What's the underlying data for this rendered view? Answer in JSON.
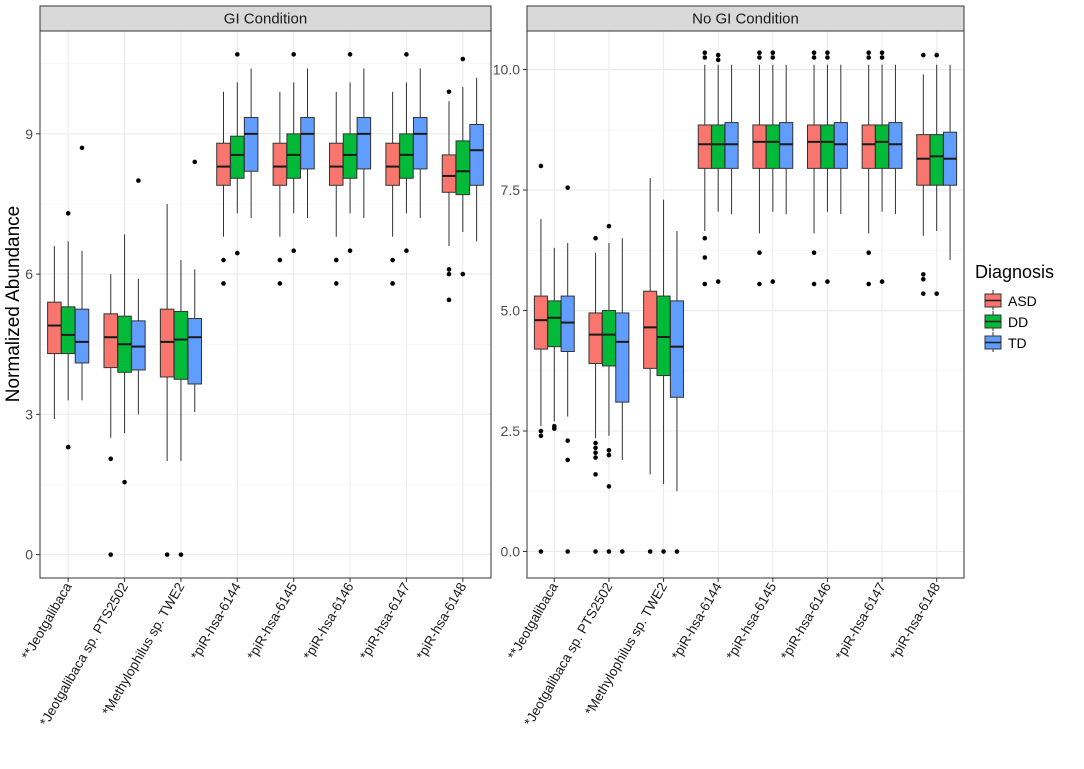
{
  "chart_data": {
    "type": "boxplot",
    "ylabel": "Normalized Abundance",
    "categories": [
      "**Jeotgalibaca",
      "*Jeotgalibaca sp. PTS2502",
      "*Methylophilus sp. TWE2",
      "*piR-hsa-6144",
      "*piR-hsa-6145",
      "*piR-hsa-6146",
      "*piR-hsa-6147",
      "*piR-hsa-6148"
    ],
    "legend": {
      "title": "Diagnosis",
      "groups": [
        {
          "name": "ASD",
          "color": "#F8766D"
        },
        {
          "name": "DD",
          "color": "#00BA38"
        },
        {
          "name": "TD",
          "color": "#619CFF"
        }
      ]
    },
    "panels": [
      {
        "title": "GI Condition",
        "ylim": [
          -0.5,
          11.2
        ],
        "yticks": [
          0,
          3,
          6,
          9
        ],
        "ytick_labels": [
          "0",
          "3",
          "6",
          "9"
        ],
        "groups": [
          [
            {
              "lw": 2.9,
              "q1": 4.3,
              "med": 4.9,
              "q3": 5.4,
              "uw": 6.6,
              "out": []
            },
            {
              "lw": 3.3,
              "q1": 4.3,
              "med": 4.7,
              "q3": 5.3,
              "uw": 6.7,
              "out": [
                7.3,
                2.3
              ]
            },
            {
              "lw": 3.3,
              "q1": 4.1,
              "med": 4.55,
              "q3": 5.25,
              "uw": 6.5,
              "out": [
                8.7
              ]
            }
          ],
          [
            {
              "lw": 2.5,
              "q1": 4.0,
              "med": 4.65,
              "q3": 5.15,
              "uw": 6.0,
              "out": [
                2.05,
                0.0
              ]
            },
            {
              "lw": 2.6,
              "q1": 3.9,
              "med": 4.5,
              "q3": 5.1,
              "uw": 6.85,
              "out": [
                1.55
              ]
            },
            {
              "lw": 3.0,
              "q1": 3.95,
              "med": 4.45,
              "q3": 5.0,
              "uw": 5.9,
              "out": [
                8.0
              ]
            }
          ],
          [
            {
              "lw": 2.0,
              "q1": 3.8,
              "med": 4.55,
              "q3": 5.25,
              "uw": 7.5,
              "out": [
                0.0
              ]
            },
            {
              "lw": 2.0,
              "q1": 3.75,
              "med": 4.6,
              "q3": 5.2,
              "uw": 6.3,
              "out": [
                0.0
              ]
            },
            {
              "lw": 3.05,
              "q1": 3.65,
              "med": 4.65,
              "q3": 5.05,
              "uw": 6.1,
              "out": [
                8.4
              ]
            }
          ],
          [
            {
              "lw": 6.8,
              "q1": 7.9,
              "med": 8.3,
              "q3": 8.8,
              "uw": 9.9,
              "out": [
                6.3,
                5.8
              ]
            },
            {
              "lw": 7.3,
              "q1": 8.05,
              "med": 8.55,
              "q3": 8.95,
              "uw": 10.1,
              "out": [
                10.7,
                6.45
              ]
            },
            {
              "lw": 7.2,
              "q1": 8.2,
              "med": 9.0,
              "q3": 9.35,
              "uw": 10.4,
              "out": []
            }
          ],
          [
            {
              "lw": 6.8,
              "q1": 7.9,
              "med": 8.3,
              "q3": 8.8,
              "uw": 9.9,
              "out": [
                6.3,
                5.8
              ]
            },
            {
              "lw": 7.3,
              "q1": 8.05,
              "med": 8.55,
              "q3": 9.0,
              "uw": 10.1,
              "out": [
                10.7,
                6.5
              ]
            },
            {
              "lw": 7.2,
              "q1": 8.25,
              "med": 9.0,
              "q3": 9.35,
              "uw": 10.4,
              "out": []
            }
          ],
          [
            {
              "lw": 6.8,
              "q1": 7.9,
              "med": 8.3,
              "q3": 8.8,
              "uw": 9.9,
              "out": [
                6.3,
                5.8
              ]
            },
            {
              "lw": 7.3,
              "q1": 8.05,
              "med": 8.55,
              "q3": 9.0,
              "uw": 10.1,
              "out": [
                10.7,
                6.5
              ]
            },
            {
              "lw": 7.2,
              "q1": 8.25,
              "med": 9.0,
              "q3": 9.35,
              "uw": 10.4,
              "out": []
            }
          ],
          [
            {
              "lw": 6.8,
              "q1": 7.9,
              "med": 8.3,
              "q3": 8.8,
              "uw": 9.9,
              "out": [
                6.3,
                5.8
              ]
            },
            {
              "lw": 7.3,
              "q1": 8.05,
              "med": 8.55,
              "q3": 9.0,
              "uw": 10.1,
              "out": [
                10.7,
                6.5
              ]
            },
            {
              "lw": 7.2,
              "q1": 8.25,
              "med": 9.0,
              "q3": 9.35,
              "uw": 10.4,
              "out": []
            }
          ],
          [
            {
              "lw": 6.6,
              "q1": 7.75,
              "med": 8.1,
              "q3": 8.55,
              "uw": 9.7,
              "out": [
                9.9,
                6.1,
                6.0,
                5.45
              ]
            },
            {
              "lw": 6.9,
              "q1": 7.7,
              "med": 8.2,
              "q3": 8.85,
              "uw": 10.0,
              "out": [
                10.6,
                6.0
              ]
            },
            {
              "lw": 6.7,
              "q1": 7.9,
              "med": 8.65,
              "q3": 9.2,
              "uw": 10.2,
              "out": []
            }
          ]
        ]
      },
      {
        "title": "No GI Condition",
        "ylim": [
          -0.55,
          10.8
        ],
        "yticks": [
          0,
          2.5,
          5,
          7.5,
          10
        ],
        "ytick_labels": [
          "0.0",
          "2.5",
          "5.0",
          "7.5",
          "10.0"
        ],
        "groups": [
          [
            {
              "lw": 2.6,
              "q1": 4.2,
              "med": 4.8,
              "q3": 5.3,
              "uw": 6.9,
              "out": [
                8.0,
                2.5,
                2.4,
                0.0
              ]
            },
            {
              "lw": 2.7,
              "q1": 4.25,
              "med": 4.85,
              "q3": 5.2,
              "uw": 6.3,
              "out": [
                2.6,
                2.55
              ]
            },
            {
              "lw": 2.8,
              "q1": 4.15,
              "med": 4.75,
              "q3": 5.3,
              "uw": 6.4,
              "out": [
                7.55,
                2.3,
                1.9,
                0.0
              ]
            }
          ],
          [
            {
              "lw": 2.35,
              "q1": 3.9,
              "med": 4.5,
              "q3": 4.95,
              "uw": 6.2,
              "out": [
                6.5,
                2.25,
                2.15,
                2.05,
                1.95,
                1.6,
                0.0
              ]
            },
            {
              "lw": 2.4,
              "q1": 3.85,
              "med": 4.5,
              "q3": 5.0,
              "uw": 6.4,
              "out": [
                6.75,
                2.1,
                2.0,
                1.35,
                0.0
              ]
            },
            {
              "lw": 1.9,
              "q1": 3.1,
              "med": 4.35,
              "q3": 4.95,
              "uw": 6.5,
              "out": [
                0.0
              ]
            }
          ],
          [
            {
              "lw": 1.6,
              "q1": 3.8,
              "med": 4.65,
              "q3": 5.4,
              "uw": 7.75,
              "out": [
                0.0
              ]
            },
            {
              "lw": 1.4,
              "q1": 3.65,
              "med": 4.45,
              "q3": 5.3,
              "uw": 7.3,
              "out": [
                0.0
              ]
            },
            {
              "lw": 1.25,
              "q1": 3.2,
              "med": 4.25,
              "q3": 5.2,
              "uw": 6.65,
              "out": [
                0.0
              ]
            }
          ],
          [
            {
              "lw": 6.65,
              "q1": 7.95,
              "med": 8.45,
              "q3": 8.85,
              "uw": 10.1,
              "out": [
                10.35,
                10.25,
                6.5,
                6.1,
                5.55
              ]
            },
            {
              "lw": 7.05,
              "q1": 7.95,
              "med": 8.45,
              "q3": 8.85,
              "uw": 10.1,
              "out": [
                10.3,
                10.2,
                5.6
              ]
            },
            {
              "lw": 7.0,
              "q1": 7.95,
              "med": 8.45,
              "q3": 8.9,
              "uw": 10.1,
              "out": []
            }
          ],
          [
            {
              "lw": 6.6,
              "q1": 7.95,
              "med": 8.5,
              "q3": 8.85,
              "uw": 10.1,
              "out": [
                10.35,
                10.25,
                6.2,
                5.55
              ]
            },
            {
              "lw": 7.05,
              "q1": 7.95,
              "med": 8.5,
              "q3": 8.85,
              "uw": 10.1,
              "out": [
                10.35,
                10.25,
                5.6
              ]
            },
            {
              "lw": 7.0,
              "q1": 7.95,
              "med": 8.45,
              "q3": 8.9,
              "uw": 10.1,
              "out": []
            }
          ],
          [
            {
              "lw": 6.6,
              "q1": 7.95,
              "med": 8.5,
              "q3": 8.85,
              "uw": 10.1,
              "out": [
                10.35,
                10.25,
                6.2,
                5.55
              ]
            },
            {
              "lw": 7.05,
              "q1": 7.95,
              "med": 8.5,
              "q3": 8.85,
              "uw": 10.1,
              "out": [
                10.35,
                10.25,
                5.6
              ]
            },
            {
              "lw": 7.0,
              "q1": 7.95,
              "med": 8.45,
              "q3": 8.9,
              "uw": 10.1,
              "out": []
            }
          ],
          [
            {
              "lw": 6.6,
              "q1": 7.95,
              "med": 8.45,
              "q3": 8.85,
              "uw": 10.1,
              "out": [
                10.35,
                10.25,
                6.2,
                5.55
              ]
            },
            {
              "lw": 7.05,
              "q1": 7.95,
              "med": 8.5,
              "q3": 8.85,
              "uw": 10.1,
              "out": [
                10.35,
                10.25,
                5.6
              ]
            },
            {
              "lw": 7.0,
              "q1": 7.95,
              "med": 8.45,
              "q3": 8.9,
              "uw": 10.1,
              "out": []
            }
          ],
          [
            {
              "lw": 6.55,
              "q1": 7.6,
              "med": 8.15,
              "q3": 8.65,
              "uw": 9.9,
              "out": [
                10.3,
                5.75,
                5.65,
                5.35
              ]
            },
            {
              "lw": 6.65,
              "q1": 7.6,
              "med": 8.2,
              "q3": 8.65,
              "uw": 10.1,
              "out": [
                10.3,
                5.35
              ]
            },
            {
              "lw": 6.05,
              "q1": 7.6,
              "med": 8.15,
              "q3": 8.7,
              "uw": 10.1,
              "out": []
            }
          ]
        ]
      }
    ]
  }
}
